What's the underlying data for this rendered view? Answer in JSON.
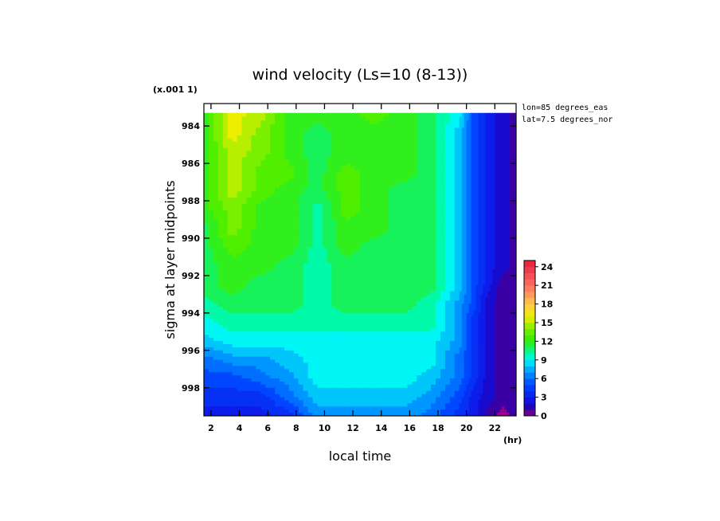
{
  "chart_data": {
    "type": "heatmap",
    "title": "wind velocity (Ls=10 (8-13))",
    "xlabel": "local time",
    "ylabel": "sigma at layer midpoints",
    "x_unit_label": "(hr)",
    "y_scale_label": "(x.001 1)",
    "annotations": [
      "lon=85 degrees_eas",
      "lat=7.5 degrees_nor"
    ],
    "xlim": [
      1.5,
      23.5
    ],
    "ylim": [
      999.5,
      982.8
    ],
    "x_ticks": [
      "2",
      "4",
      "6",
      "8",
      "10",
      "12",
      "14",
      "16",
      "18",
      "20",
      "22"
    ],
    "y_ticks": [
      "984",
      "986",
      "988",
      "990",
      "992",
      "994",
      "996",
      "998"
    ],
    "x": [
      1.5,
      3.5,
      5.5,
      7.5,
      9.5,
      11.5,
      13.5,
      15.5,
      17.5,
      19.5,
      20.5,
      21.5,
      22.5,
      23.5
    ],
    "y": [
      983.3,
      984.5,
      985.5,
      986.5,
      987.5,
      988.5,
      989.5,
      990.5,
      991.5,
      992.5,
      993.5,
      994.5,
      995.5,
      996.5,
      997.5,
      998.5,
      999.5
    ],
    "z": [
      [
        12,
        16,
        15,
        12,
        12,
        12,
        13,
        12,
        11,
        9,
        5,
        3,
        2,
        1
      ],
      [
        12,
        16,
        14,
        12,
        11,
        12,
        12,
        12,
        11,
        8,
        5,
        3,
        2,
        1
      ],
      [
        12,
        15,
        14,
        12,
        11,
        12,
        12,
        12,
        11,
        8,
        5,
        3,
        2,
        1
      ],
      [
        12,
        15,
        13,
        13,
        11,
        13,
        12,
        12,
        11,
        8,
        5,
        3,
        2,
        1
      ],
      [
        12,
        15,
        13,
        12,
        11,
        13,
        12,
        11,
        11,
        8,
        5,
        3,
        2,
        1
      ],
      [
        12,
        14,
        12,
        12,
        10,
        13,
        12,
        11,
        11,
        8,
        5,
        3,
        2,
        1
      ],
      [
        11,
        14,
        12,
        12,
        10,
        12,
        12,
        11,
        11,
        8,
        5,
        3,
        2,
        1
      ],
      [
        11,
        13,
        12,
        12,
        10,
        12,
        11,
        11,
        11,
        8,
        5,
        3,
        2,
        1
      ],
      [
        11,
        12,
        12,
        11,
        10,
        11,
        11,
        11,
        11,
        8,
        5,
        3,
        2,
        1
      ],
      [
        11,
        12,
        11,
        11,
        10,
        11,
        11,
        11,
        11,
        8,
        5,
        3,
        1,
        1
      ],
      [
        10,
        11,
        11,
        11,
        10,
        11,
        11,
        11,
        10,
        7,
        5,
        2,
        1,
        1
      ],
      [
        9,
        10,
        10,
        10,
        10,
        10,
        10,
        10,
        10,
        7,
        4,
        2,
        1,
        1
      ],
      [
        8,
        9,
        9,
        9,
        9,
        9,
        9,
        9,
        9,
        7,
        4,
        2,
        1,
        1
      ],
      [
        6,
        7,
        7,
        8,
        9,
        9,
        9,
        9,
        9,
        6,
        4,
        2,
        1,
        1
      ],
      [
        5,
        5,
        6,
        7,
        9,
        9,
        9,
        9,
        8,
        6,
        4,
        2,
        1,
        1
      ],
      [
        4,
        4,
        4,
        6,
        8,
        8,
        8,
        8,
        7,
        5,
        3,
        2,
        1,
        1
      ],
      [
        3,
        3,
        3,
        4,
        7,
        7,
        7,
        7,
        6,
        4,
        3,
        1,
        0,
        1
      ]
    ],
    "colorbar": {
      "min": 0,
      "max": 25,
      "tick_labels": [
        "0",
        "3",
        "6",
        "9",
        "12",
        "15",
        "18",
        "21",
        "24"
      ]
    }
  }
}
